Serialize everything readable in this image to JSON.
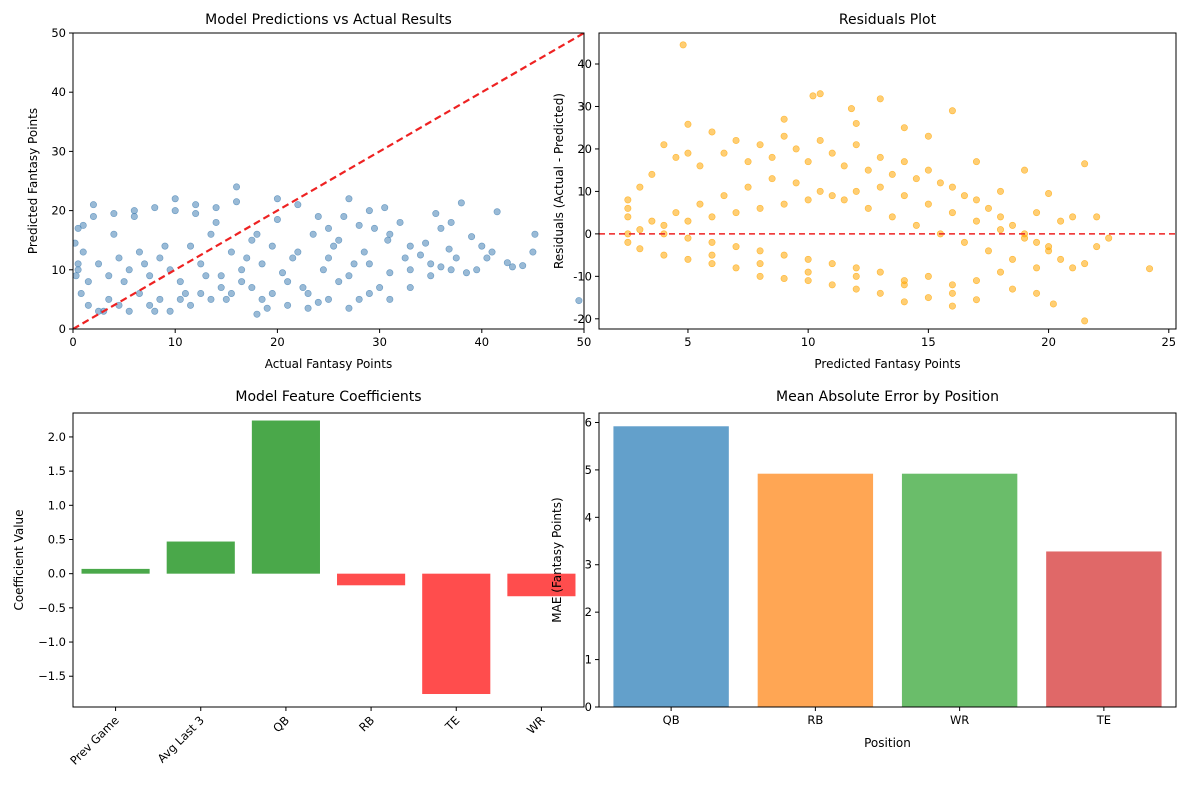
{
  "chart_data": [
    {
      "type": "scatter",
      "title": "Model Predictions vs Actual Results",
      "xlabel": "Actual Fantasy Points",
      "ylabel": "Predicted Fantasy Points",
      "xlim": [
        0,
        50
      ],
      "ylim": [
        0,
        50
      ],
      "xticks": [
        0,
        10,
        20,
        30,
        40,
        50
      ],
      "yticks": [
        0,
        10,
        20,
        30,
        40,
        50
      ],
      "point_color": "#4682b4",
      "reference_line": {
        "from": [
          0,
          0
        ],
        "to": [
          50,
          50
        ],
        "color": "#ee2222",
        "style": "dashed"
      },
      "points": [
        [
          43,
          10.5
        ],
        [
          44,
          10.7
        ],
        [
          45,
          13
        ],
        [
          45.2,
          16
        ],
        [
          49.5,
          4.8
        ],
        [
          38,
          21.3
        ],
        [
          40,
          14
        ],
        [
          37,
          18
        ],
        [
          36,
          17
        ],
        [
          35.5,
          19.5
        ],
        [
          34,
          12.5
        ],
        [
          33,
          14
        ],
        [
          32,
          18
        ],
        [
          31,
          16
        ],
        [
          30.5,
          20.5
        ],
        [
          29,
          11
        ],
        [
          28,
          17.5
        ],
        [
          27,
          9
        ],
        [
          26,
          15
        ],
        [
          25,
          12
        ],
        [
          24,
          19
        ],
        [
          23,
          6
        ],
        [
          22,
          13
        ],
        [
          21,
          8
        ],
        [
          20,
          22
        ],
        [
          19,
          3.5
        ],
        [
          18,
          16
        ],
        [
          17,
          12
        ],
        [
          16,
          24
        ],
        [
          15,
          5
        ],
        [
          14,
          18
        ],
        [
          13,
          9
        ],
        [
          12,
          21
        ],
        [
          11,
          6
        ],
        [
          10,
          22
        ],
        [
          9,
          14
        ],
        [
          8,
          3
        ],
        [
          7,
          11
        ],
        [
          6,
          19
        ],
        [
          5,
          8
        ],
        [
          4,
          16
        ],
        [
          3,
          3
        ],
        [
          2,
          21
        ],
        [
          1,
          13
        ],
        [
          0.2,
          14.5
        ],
        [
          0.5,
          17
        ],
        [
          36.8,
          13.5
        ],
        [
          39,
          15.6
        ],
        [
          41.5,
          19.8
        ],
        [
          42.5,
          11.2
        ],
        [
          30,
          7
        ],
        [
          28,
          5
        ],
        [
          26,
          8
        ],
        [
          24,
          4.5
        ],
        [
          22,
          21
        ],
        [
          20,
          18.5
        ],
        [
          35,
          11
        ],
        [
          33,
          10
        ],
        [
          31,
          9.5
        ],
        [
          29,
          20
        ],
        [
          27,
          22
        ],
        [
          25,
          17
        ],
        [
          18,
          2.5
        ],
        [
          16,
          21.5
        ],
        [
          14,
          20.5
        ],
        [
          12,
          19.5
        ],
        [
          10,
          20
        ],
        [
          8,
          20.5
        ],
        [
          6,
          20
        ],
        [
          4,
          19.5
        ],
        [
          2,
          19
        ],
        [
          1,
          17.5
        ],
        [
          0.5,
          11
        ],
        [
          0.3,
          9
        ],
        [
          0.8,
          6
        ],
        [
          1.5,
          4
        ],
        [
          2.5,
          3
        ],
        [
          3.5,
          5
        ],
        [
          4.5,
          4
        ],
        [
          5.5,
          3
        ],
        [
          6.5,
          6
        ],
        [
          7.5,
          4
        ],
        [
          8.5,
          5
        ],
        [
          9.5,
          3
        ],
        [
          10.5,
          5
        ],
        [
          11.5,
          4
        ],
        [
          12.5,
          6
        ],
        [
          13.5,
          5
        ],
        [
          14.5,
          7
        ],
        [
          15.5,
          6
        ],
        [
          16.5,
          8
        ],
        [
          17.5,
          7
        ],
        [
          18.5,
          5
        ],
        [
          19.5,
          6
        ],
        [
          21,
          4
        ],
        [
          23,
          3.5
        ],
        [
          25,
          5
        ],
        [
          27,
          3.5
        ],
        [
          29,
          6
        ],
        [
          31,
          5
        ],
        [
          33,
          7
        ],
        [
          35,
          9
        ],
        [
          37,
          10
        ],
        [
          38.5,
          9.5
        ],
        [
          40.5,
          12
        ],
        [
          32.5,
          12
        ],
        [
          34.5,
          14.5
        ],
        [
          36,
          10.5
        ],
        [
          37.5,
          12
        ],
        [
          39.5,
          10
        ],
        [
          41,
          13
        ],
        [
          30.8,
          15
        ],
        [
          29.5,
          17
        ],
        [
          28.5,
          13
        ],
        [
          27.5,
          11
        ],
        [
          26.5,
          19
        ],
        [
          25.5,
          14
        ],
        [
          24.5,
          10
        ],
        [
          23.5,
          16
        ],
        [
          22.5,
          7
        ],
        [
          21.5,
          12
        ],
        [
          20.5,
          9.5
        ],
        [
          19.5,
          14
        ],
        [
          18.5,
          11
        ],
        [
          17.5,
          15
        ],
        [
          16.5,
          10
        ],
        [
          15.5,
          13
        ],
        [
          14.5,
          9
        ],
        [
          13.5,
          16
        ],
        [
          12.5,
          11
        ],
        [
          11.5,
          14
        ],
        [
          10.5,
          8
        ],
        [
          9.5,
          10
        ],
        [
          8.5,
          12
        ],
        [
          7.5,
          9
        ],
        [
          6.5,
          13
        ],
        [
          5.5,
          10
        ],
        [
          4.5,
          12
        ],
        [
          3.5,
          9
        ],
        [
          2.5,
          11
        ],
        [
          1.5,
          8
        ],
        [
          0.5,
          10
        ]
      ]
    },
    {
      "type": "scatter",
      "title": "Residuals Plot",
      "xlabel": "Predicted Fantasy Points",
      "ylabel": "Residuals (Actual - Predicted)",
      "xlim": [
        1.3,
        25.3
      ],
      "ylim": [
        -22.4,
        47.3
      ],
      "xticks": [
        5,
        10,
        15,
        20,
        25
      ],
      "yticks": [
        -20,
        -10,
        0,
        10,
        20,
        30,
        40
      ],
      "point_color": "#ffa500",
      "reference_line": {
        "y": 0,
        "color": "#ee2222",
        "style": "dashed"
      },
      "points": [
        [
          4.8,
          44.5
        ],
        [
          5,
          25.8
        ],
        [
          10.2,
          32.5
        ],
        [
          10.5,
          33
        ],
        [
          11.8,
          29.5
        ],
        [
          13,
          31.8
        ],
        [
          16,
          29
        ],
        [
          14,
          25
        ],
        [
          9,
          27
        ],
        [
          12,
          26
        ],
        [
          15,
          23
        ],
        [
          17,
          17
        ],
        [
          18,
          10
        ],
        [
          19,
          15
        ],
        [
          19.5,
          5
        ],
        [
          20,
          9.5
        ],
        [
          20.5,
          3
        ],
        [
          21,
          4
        ],
        [
          21.5,
          16.5
        ],
        [
          22,
          4
        ],
        [
          22.5,
          -1
        ],
        [
          24.2,
          -8.2
        ],
        [
          21.5,
          -20.5
        ],
        [
          20.2,
          -16.5
        ],
        [
          19.5,
          -14
        ],
        [
          18.5,
          -13
        ],
        [
          17,
          -15.5
        ],
        [
          16,
          -17
        ],
        [
          15,
          -15
        ],
        [
          14,
          -16
        ],
        [
          13,
          -14
        ],
        [
          12,
          -13
        ],
        [
          11,
          -12
        ],
        [
          10,
          -11
        ],
        [
          9,
          -10.5
        ],
        [
          8,
          -10
        ],
        [
          7,
          -8
        ],
        [
          6,
          -7
        ],
        [
          5,
          -6
        ],
        [
          4,
          -5
        ],
        [
          3,
          -3.5
        ],
        [
          2.5,
          -2
        ],
        [
          2.5,
          8
        ],
        [
          2.5,
          6
        ],
        [
          2.5,
          4
        ],
        [
          2.5,
          0
        ],
        [
          3,
          11
        ],
        [
          3.5,
          14
        ],
        [
          4,
          21
        ],
        [
          4.5,
          18
        ],
        [
          5,
          19
        ],
        [
          5.5,
          16
        ],
        [
          6,
          24
        ],
        [
          6.5,
          19
        ],
        [
          7,
          22
        ],
        [
          7.5,
          17
        ],
        [
          8,
          21
        ],
        [
          8.5,
          18
        ],
        [
          9,
          23
        ],
        [
          9.5,
          20
        ],
        [
          10,
          17
        ],
        [
          10.5,
          22
        ],
        [
          11,
          19
        ],
        [
          11.5,
          16
        ],
        [
          12,
          21
        ],
        [
          12.5,
          15
        ],
        [
          13,
          18
        ],
        [
          13.5,
          14
        ],
        [
          14,
          17
        ],
        [
          14.5,
          13
        ],
        [
          15,
          15
        ],
        [
          15.5,
          12
        ],
        [
          16,
          11
        ],
        [
          16.5,
          9
        ],
        [
          17,
          8
        ],
        [
          17.5,
          6
        ],
        [
          18,
          4
        ],
        [
          18.5,
          2
        ],
        [
          19,
          0
        ],
        [
          19.5,
          -2
        ],
        [
          20,
          -4
        ],
        [
          20.5,
          -6
        ],
        [
          21,
          -8
        ],
        [
          21.5,
          -7
        ],
        [
          22,
          -3
        ],
        [
          18,
          -9
        ],
        [
          17,
          -11
        ],
        [
          16,
          -12
        ],
        [
          15,
          -10
        ],
        [
          14,
          -11
        ],
        [
          13,
          -9
        ],
        [
          12,
          -8
        ],
        [
          11,
          -7
        ],
        [
          10,
          -6
        ],
        [
          9,
          -5
        ],
        [
          8,
          -4
        ],
        [
          7,
          -3
        ],
        [
          6,
          -2
        ],
        [
          5,
          -1
        ],
        [
          4,
          0
        ],
        [
          3,
          1
        ],
        [
          3.5,
          3
        ],
        [
          4.5,
          5
        ],
        [
          5.5,
          7
        ],
        [
          6.5,
          9
        ],
        [
          7.5,
          11
        ],
        [
          8.5,
          13
        ],
        [
          9.5,
          12
        ],
        [
          10.5,
          10
        ],
        [
          11.5,
          8
        ],
        [
          12.5,
          6
        ],
        [
          13.5,
          4
        ],
        [
          14.5,
          2
        ],
        [
          15.5,
          0
        ],
        [
          16.5,
          -2
        ],
        [
          17.5,
          -4
        ],
        [
          18.5,
          -6
        ],
        [
          19.5,
          -8
        ],
        [
          4,
          2
        ],
        [
          5,
          3
        ],
        [
          6,
          4
        ],
        [
          7,
          5
        ],
        [
          8,
          6
        ],
        [
          9,
          7
        ],
        [
          10,
          8
        ],
        [
          11,
          9
        ],
        [
          12,
          10
        ],
        [
          13,
          11
        ],
        [
          14,
          9
        ],
        [
          15,
          7
        ],
        [
          16,
          5
        ],
        [
          17,
          3
        ],
        [
          18,
          1
        ],
        [
          19,
          -1
        ],
        [
          20,
          -3
        ],
        [
          6,
          -5
        ],
        [
          8,
          -7
        ],
        [
          10,
          -9
        ],
        [
          12,
          -10
        ],
        [
          14,
          -12
        ],
        [
          16,
          -14
        ]
      ]
    },
    {
      "type": "bar",
      "title": "Model Feature Coefficients",
      "xlabel": "",
      "ylabel": "Coefficient Value",
      "categories": [
        "Prev Game",
        "Avg Last 3",
        "QB",
        "RB",
        "TE",
        "WR"
      ],
      "values": [
        0.07,
        0.47,
        2.24,
        -0.17,
        -1.76,
        -0.33
      ],
      "colors": [
        "#4aa84a",
        "#4aa84a",
        "#4aa84a",
        "#ff4d4d",
        "#ff4d4d",
        "#ff4d4d"
      ],
      "ylim": [
        -1.95,
        2.35
      ],
      "yticks": [
        -1.5,
        -1.0,
        -0.5,
        0.0,
        0.5,
        1.0,
        1.5,
        2.0
      ],
      "ytick_labels": [
        "−1.5",
        "−1.0",
        "−0.5",
        "0.0",
        "0.5",
        "1.0",
        "1.5",
        "2.0"
      ],
      "rotate_xticks": 45
    },
    {
      "type": "bar",
      "title": "Mean Absolute Error by Position",
      "xlabel": "Position",
      "ylabel": "MAE (Fantasy Points)",
      "categories": [
        "QB",
        "RB",
        "WR",
        "TE"
      ],
      "values": [
        5.92,
        4.92,
        4.92,
        3.28
      ],
      "colors": [
        "#63a0cb",
        "#ffa654",
        "#6abd6a",
        "#e06868"
      ],
      "ylim": [
        0,
        6.2
      ],
      "yticks": [
        0,
        1,
        2,
        3,
        4,
        5,
        6
      ]
    }
  ]
}
